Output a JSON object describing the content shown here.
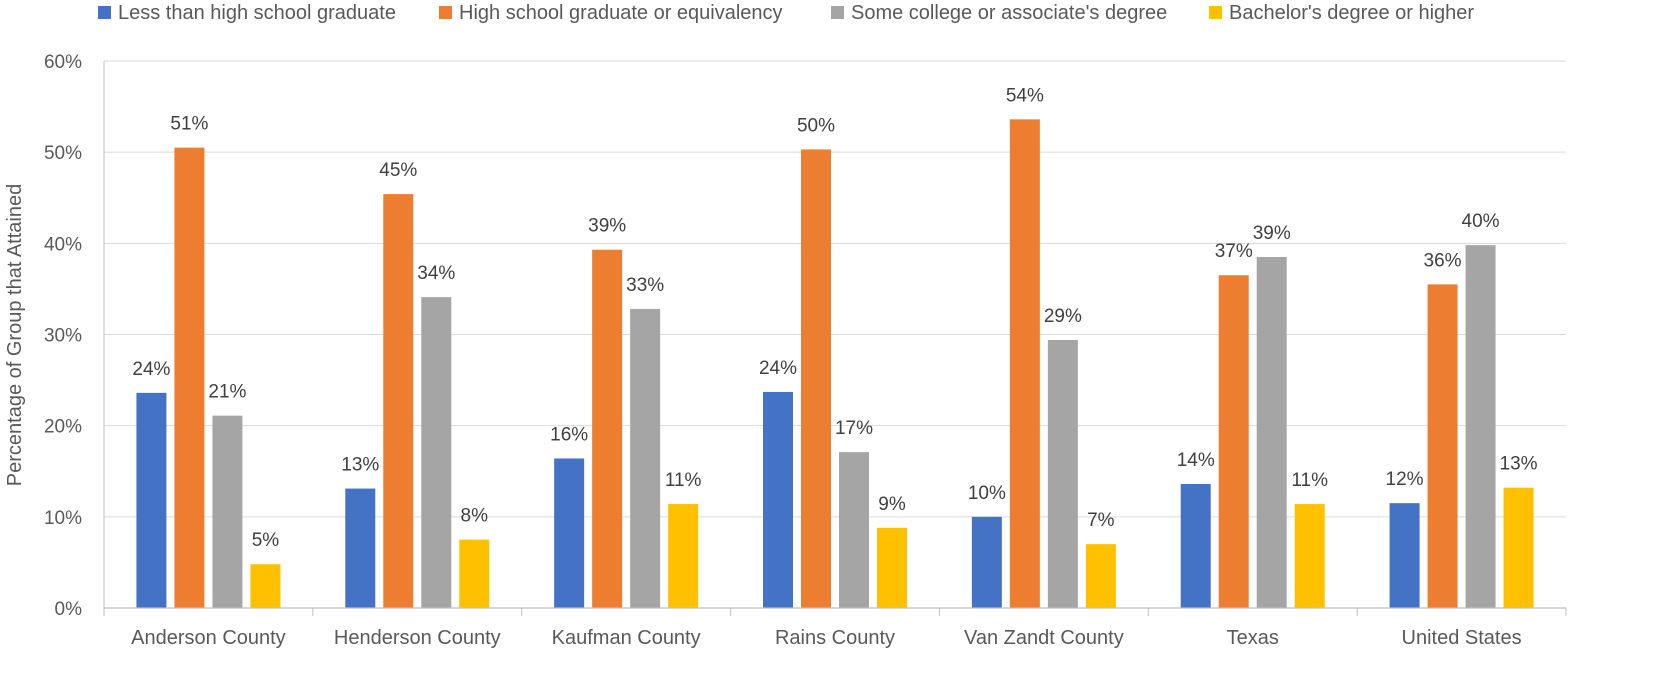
{
  "chart_data": {
    "type": "bar",
    "title": "",
    "xlabel": "",
    "ylabel": "Percentage of Group that Attained",
    "ylim": [
      0,
      60
    ],
    "y_ticks": [
      "0%",
      "10%",
      "20%",
      "30%",
      "40%",
      "50%",
      "60%"
    ],
    "grid": true,
    "legend_position": "top",
    "categories": [
      "Anderson County",
      "Henderson County",
      "Kaufman County",
      "Rains County",
      "Van Zandt County",
      "Texas",
      "United States"
    ],
    "series": [
      {
        "name": "Less than high school graduate",
        "color": "#4472C4",
        "values": [
          23.6,
          13.1,
          16.4,
          23.7,
          10.0,
          13.6,
          11.5
        ],
        "labels": [
          "24%",
          "13%",
          "16%",
          "24%",
          "10%",
          "14%",
          "12%"
        ]
      },
      {
        "name": "High school graduate or equivalency",
        "color": "#ED7D31",
        "values": [
          50.5,
          45.4,
          39.3,
          50.3,
          53.6,
          36.5,
          35.5
        ],
        "labels": [
          "51%",
          "45%",
          "39%",
          "50%",
          "54%",
          "37%",
          "36%"
        ]
      },
      {
        "name": "Some college or associate's degree",
        "color": "#A5A5A5",
        "values": [
          21.1,
          34.1,
          32.8,
          17.1,
          29.4,
          38.5,
          39.8
        ],
        "labels": [
          "21%",
          "34%",
          "33%",
          "17%",
          "29%",
          "39%",
          "40%"
        ]
      },
      {
        "name": "Bachelor's degree or higher",
        "color": "#FFC000",
        "values": [
          4.8,
          7.5,
          11.4,
          8.8,
          7.0,
          11.4,
          13.2
        ],
        "labels": [
          "5%",
          "8%",
          "11%",
          "9%",
          "7%",
          "11%",
          "13%"
        ]
      }
    ]
  }
}
